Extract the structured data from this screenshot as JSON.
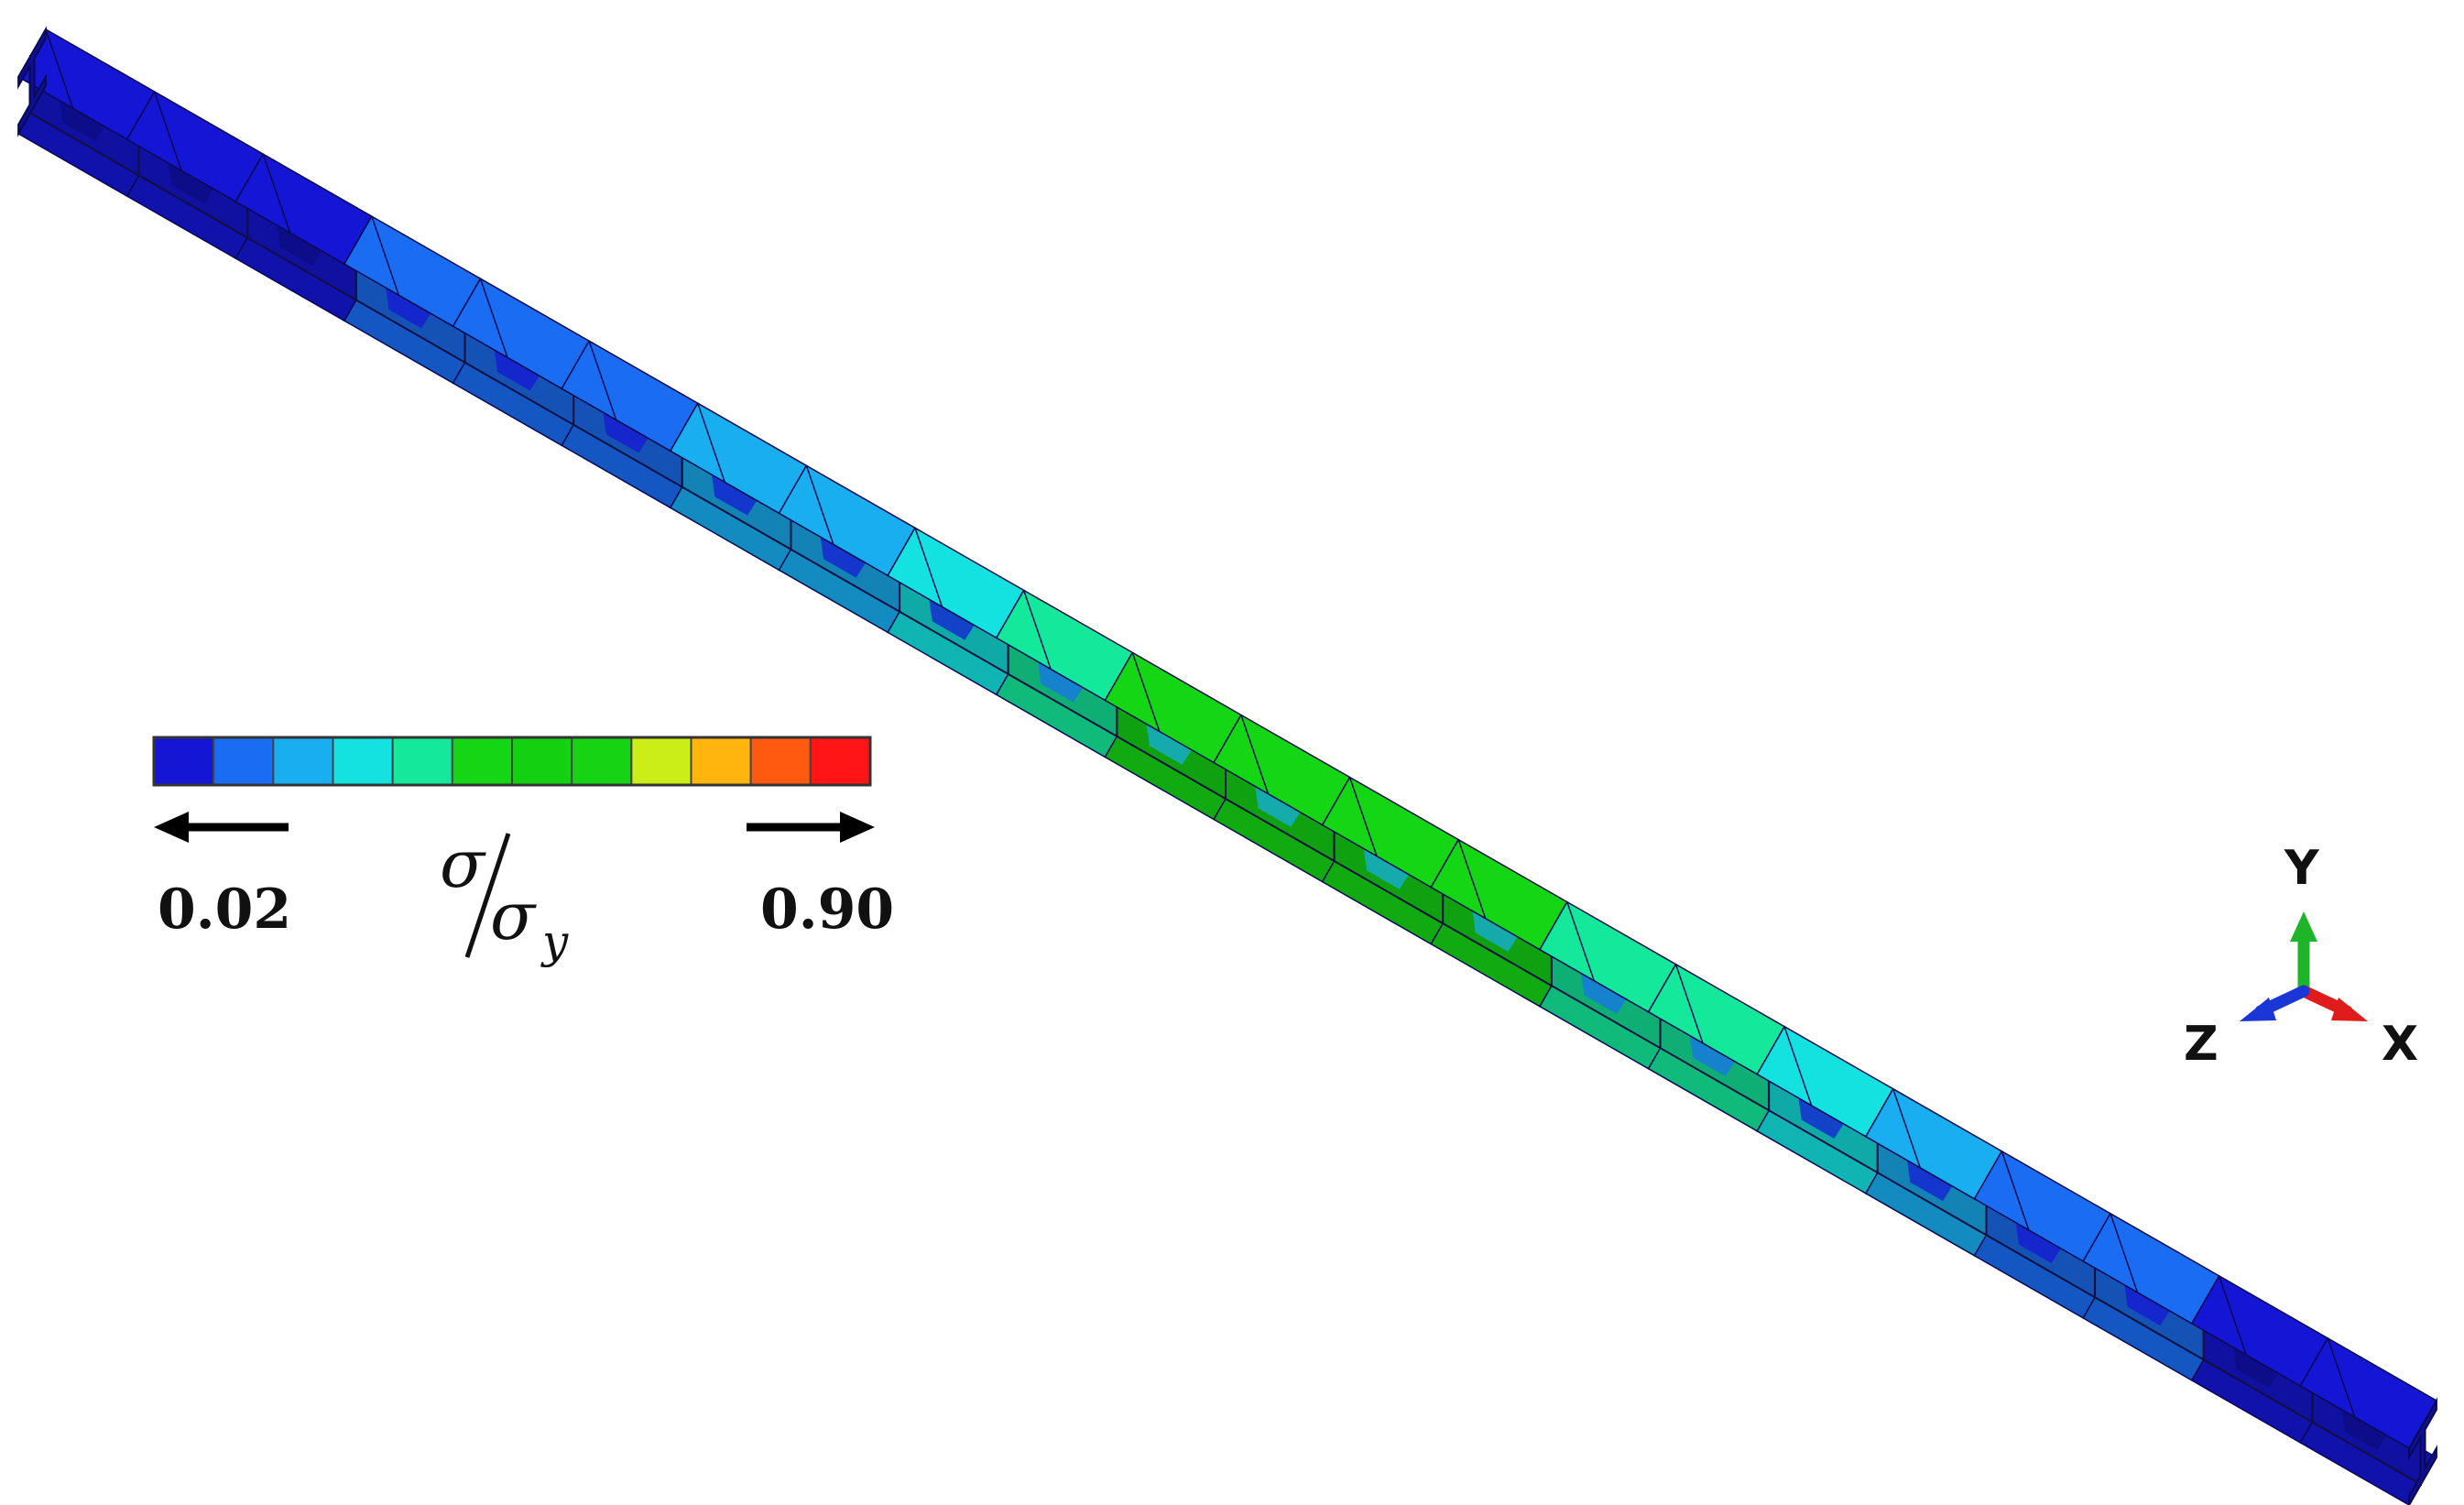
{
  "figure": {
    "colorbar": {
      "colors": [
        "#1515d6",
        "#1a6df2",
        "#18aef0",
        "#14e2e0",
        "#14e89a",
        "#15d615",
        "#13d010",
        "#16d314",
        "#cbee18",
        "#ffb40e",
        "#ff5a10",
        "#ff1515"
      ],
      "min_label": "0.02",
      "max_label": "0.90",
      "quantity_numerator": "σ",
      "quantity_denominator": "σ",
      "quantity_denominator_subscript": "y"
    },
    "beam": {
      "panel_count": 22,
      "panel_levels": [
        0,
        0,
        0,
        1,
        1,
        1,
        2,
        2,
        3,
        4,
        5,
        5,
        5,
        5,
        4,
        4,
        3,
        2,
        1,
        1,
        0,
        0
      ]
    },
    "triad": {
      "x_label": "X",
      "y_label": "Y",
      "z_label": "Z",
      "x_color": "#e01b1b",
      "y_color": "#1fb52a",
      "z_color": "#1a36d6"
    }
  }
}
